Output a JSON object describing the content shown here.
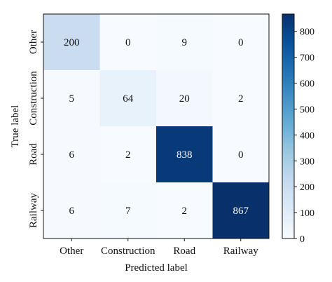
{
  "chart_data": {
    "type": "heatmap",
    "xlabel": "Predicted label",
    "ylabel": "True label",
    "x_categories": [
      "Other",
      "Construction",
      "Road",
      "Railway"
    ],
    "y_categories": [
      "Other",
      "Construction",
      "Road",
      "Railway"
    ],
    "values": [
      [
        200,
        0,
        9,
        0
      ],
      [
        5,
        64,
        20,
        2
      ],
      [
        6,
        2,
        838,
        0
      ],
      [
        6,
        7,
        2,
        867
      ]
    ],
    "colorbar": {
      "min": 0,
      "max": 867,
      "ticks": [
        0,
        100,
        200,
        300,
        400,
        500,
        600,
        700,
        800
      ]
    },
    "colormap": {
      "low": "#f7fbff",
      "high": "#08306b"
    }
  }
}
